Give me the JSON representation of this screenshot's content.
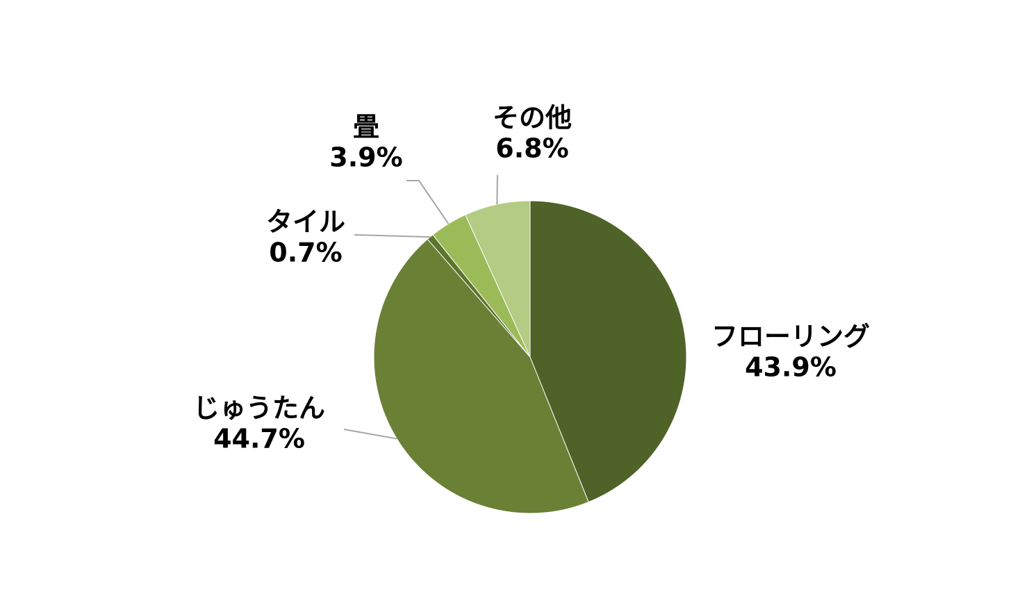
{
  "chart_data": {
    "type": "pie",
    "categories": [
      "フローリング",
      "じゅうたん",
      "タイル",
      "畳",
      "その他"
    ],
    "values": [
      43.9,
      44.7,
      0.7,
      3.9,
      6.8
    ],
    "value_labels": [
      "43.9%",
      "44.7%",
      "0.7%",
      "3.9%",
      "6.8%"
    ],
    "colors": [
      "#4f6228",
      "#6a8135",
      "#5b742e",
      "#9bbb59",
      "#b3cb82"
    ]
  }
}
